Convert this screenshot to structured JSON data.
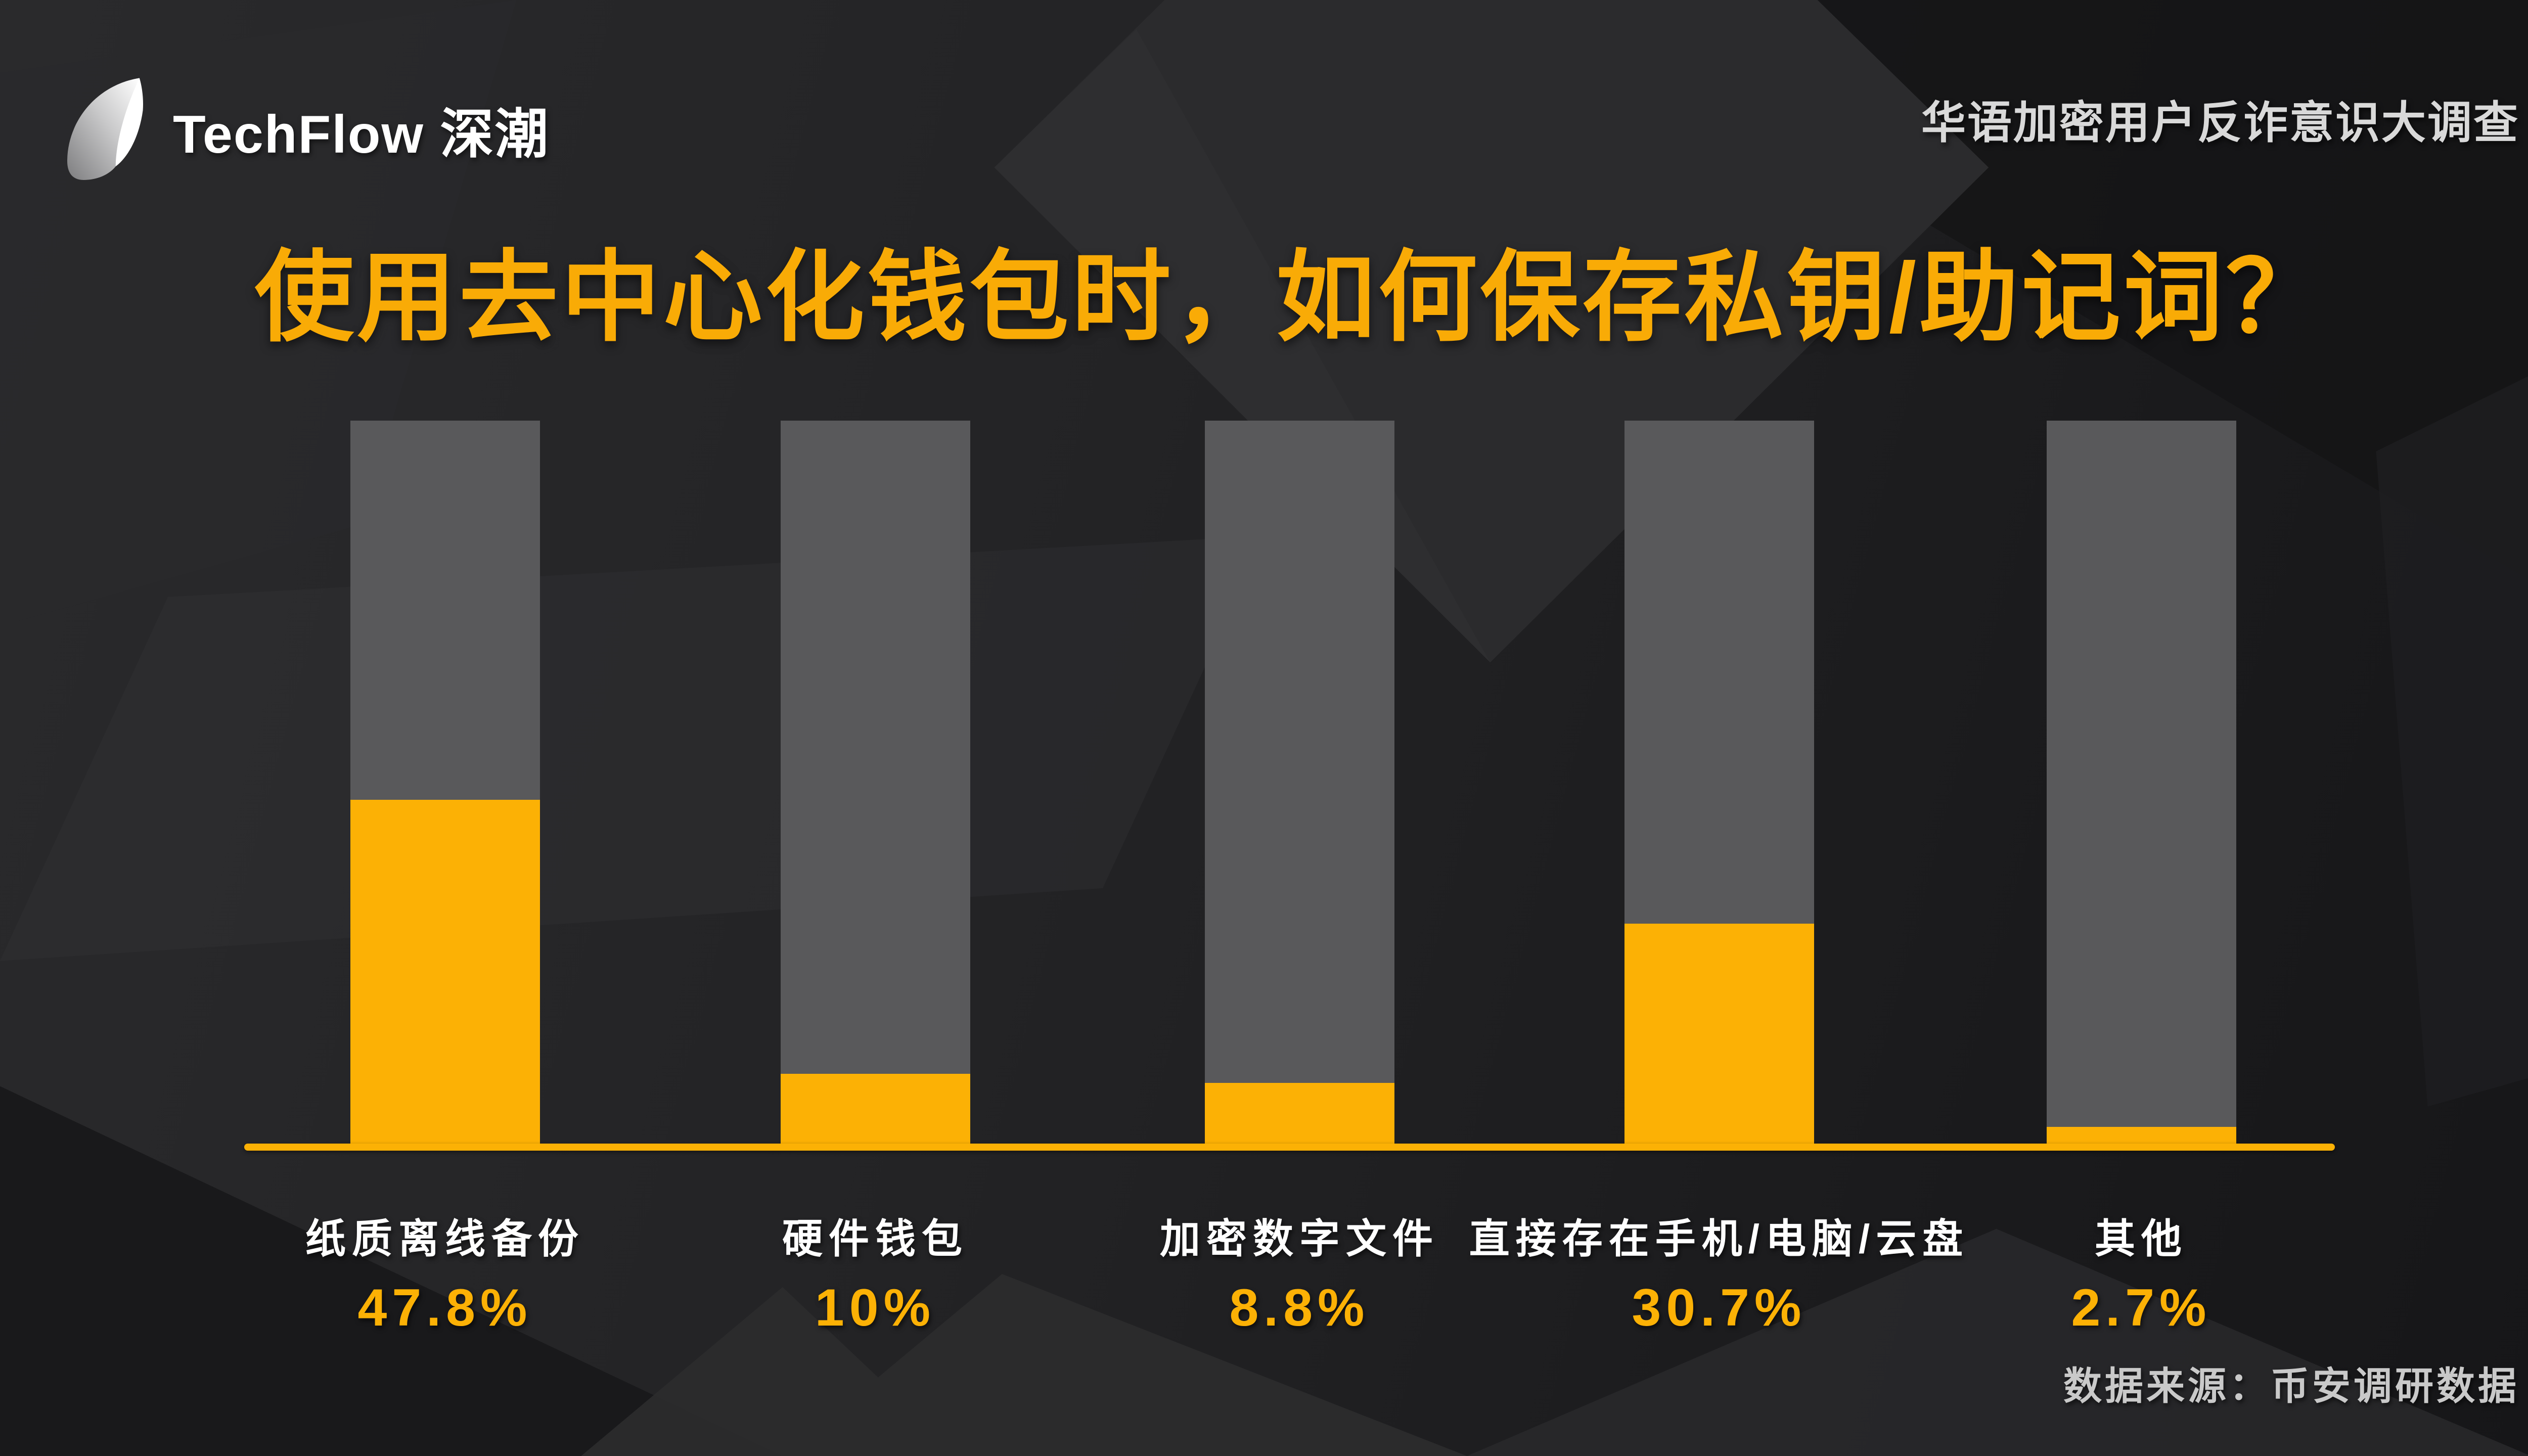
{
  "header": {
    "logo_text": "TechFlow 深潮",
    "logo_icon": "techflow-leaf-icon",
    "survey_label": "华语加密用户反诈意识大调查"
  },
  "title": "使用去中心化钱包时，如何保存私钥/助记词？",
  "source": "数据来源：币安调研数据",
  "colors": {
    "accent_orange": "#fcb105",
    "title_orange": "#f9ab06",
    "bar_gray": "#59595b",
    "background_dark": "#202022",
    "label_white": "#ffffff",
    "source_gray": "#c9c9c9"
  },
  "chart_data": {
    "type": "bar",
    "title": "使用去中心化钱包时，如何保存私钥/助记词？",
    "categories": [
      "纸质离线备份",
      "硬件钱包",
      "加密数字文件",
      "直接存在手机/电脑/云盘",
      "其他"
    ],
    "values": [
      47.8,
      10,
      8.8,
      30.7,
      2.7
    ],
    "value_labels": [
      "47.8%",
      "10%",
      "8.8%",
      "30.7%",
      "2.7%"
    ],
    "unit": "%",
    "ylim": [
      0,
      100
    ],
    "grid": false,
    "legend": "none",
    "track_full_height_represents": 100,
    "orientation": "vertical"
  }
}
